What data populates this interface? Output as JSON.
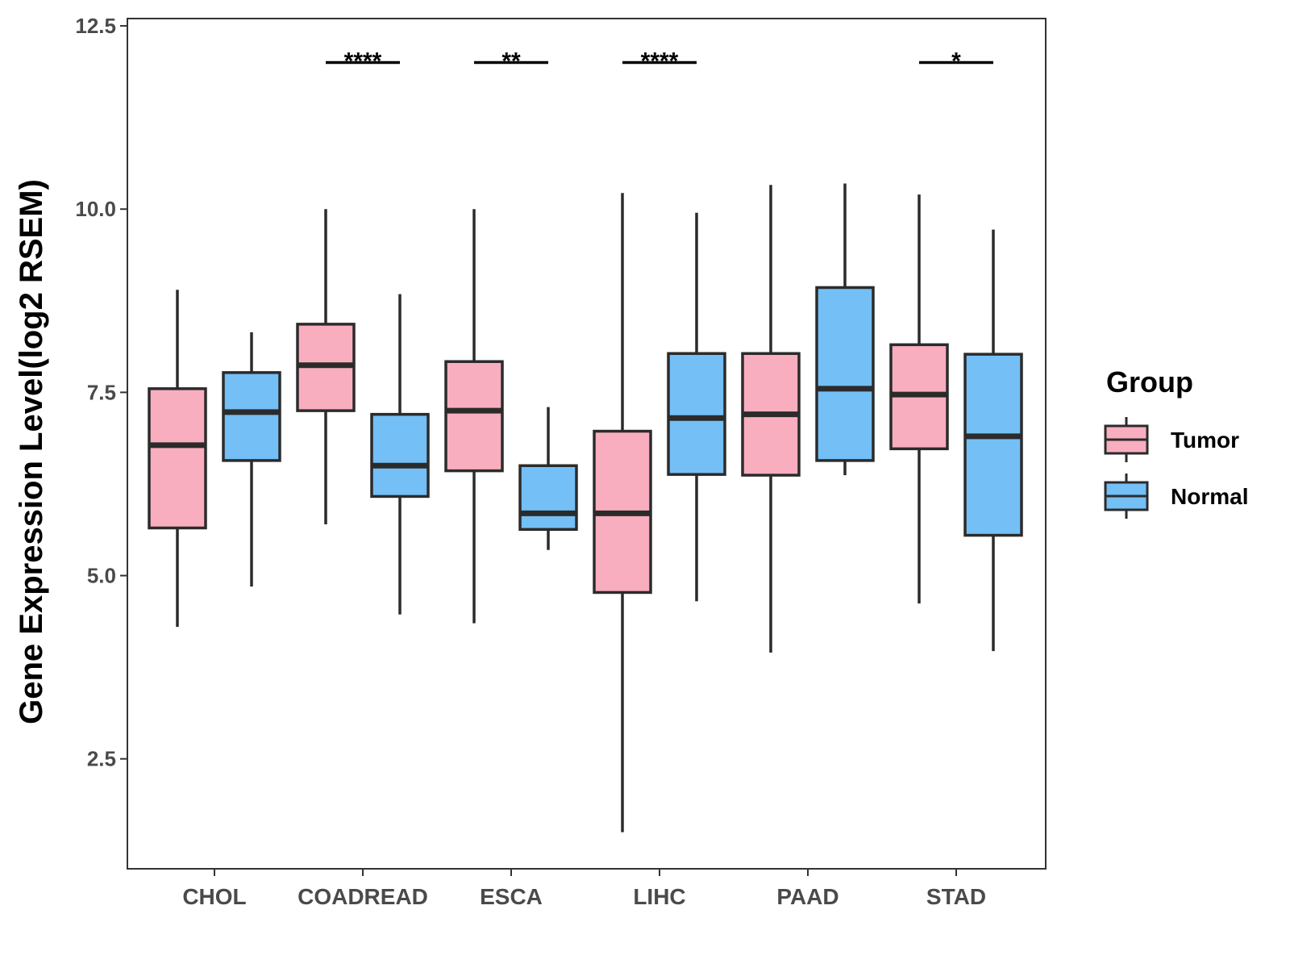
{
  "chart_data": {
    "type": "boxplot",
    "title": "",
    "xlabel": "",
    "ylabel": "Gene Expression Level(log2 RSEM)",
    "ylim": [
      1.0,
      12.6
    ],
    "yticks": [
      2.5,
      5.0,
      7.5,
      10.0,
      12.5
    ],
    "ytick_labels": [
      "2.5",
      "5.0",
      "7.5",
      "10.0",
      "12.5"
    ],
    "categories": [
      "CHOL",
      "COADREAD",
      "ESCA",
      "LIHC",
      "PAAD",
      "STAD"
    ],
    "legend": {
      "title": "Group",
      "position": "right",
      "entries": [
        {
          "name": "Tumor",
          "color": "#f9aebf"
        },
        {
          "name": "Normal",
          "color": "#74bff5"
        }
      ]
    },
    "series": [
      {
        "name": "Tumor",
        "color": "#f9aebf",
        "boxes": [
          {
            "category": "CHOL",
            "min": 4.3,
            "q1": 5.65,
            "median": 6.78,
            "q3": 7.55,
            "max": 8.9
          },
          {
            "category": "COADREAD",
            "min": 5.7,
            "q1": 7.25,
            "median": 7.87,
            "q3": 8.43,
            "max": 10.0
          },
          {
            "category": "ESCA",
            "min": 4.35,
            "q1": 6.43,
            "median": 7.25,
            "q3": 7.92,
            "max": 10.0
          },
          {
            "category": "LIHC",
            "min": 1.5,
            "q1": 4.77,
            "median": 5.85,
            "q3": 6.97,
            "max": 10.22
          },
          {
            "category": "PAAD",
            "min": 3.95,
            "q1": 6.37,
            "median": 7.2,
            "q3": 8.03,
            "max": 10.33
          },
          {
            "category": "STAD",
            "min": 4.62,
            "q1": 6.73,
            "median": 7.47,
            "q3": 8.15,
            "max": 10.2
          }
        ]
      },
      {
        "name": "Normal",
        "color": "#74bff5",
        "boxes": [
          {
            "category": "CHOL",
            "min": 4.85,
            "q1": 6.57,
            "median": 7.23,
            "q3": 7.77,
            "max": 8.32
          },
          {
            "category": "COADREAD",
            "min": 4.47,
            "q1": 6.08,
            "median": 6.5,
            "q3": 7.2,
            "max": 8.84
          },
          {
            "category": "ESCA",
            "min": 5.35,
            "q1": 5.63,
            "median": 5.85,
            "q3": 6.5,
            "max": 7.3
          },
          {
            "category": "LIHC",
            "min": 4.65,
            "q1": 6.38,
            "median": 7.15,
            "q3": 8.03,
            "max": 9.95
          },
          {
            "category": "PAAD",
            "min": 6.37,
            "q1": 6.57,
            "median": 7.55,
            "q3": 8.93,
            "max": 10.35
          },
          {
            "category": "STAD",
            "min": 3.97,
            "q1": 5.55,
            "median": 6.9,
            "q3": 8.02,
            "max": 9.72
          }
        ]
      }
    ],
    "annotations": [
      {
        "category": "COADREAD",
        "label": "****",
        "y": 12.0
      },
      {
        "category": "ESCA",
        "label": "**",
        "y": 12.0
      },
      {
        "category": "LIHC",
        "label": "****",
        "y": 12.0
      },
      {
        "category": "STAD",
        "label": "*",
        "y": 12.0
      }
    ],
    "grid": false
  }
}
